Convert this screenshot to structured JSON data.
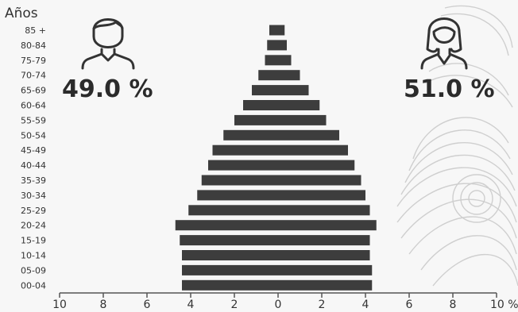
{
  "chart_data": {
    "type": "bar",
    "orientation": "horizontal",
    "layout": "population-pyramid",
    "ylabel": "Años",
    "categories": [
      "85 +",
      "80-84",
      "75-79",
      "70-74",
      "65-69",
      "60-64",
      "55-59",
      "50-54",
      "45-49",
      "40-44",
      "35-39",
      "30-34",
      "25-29",
      "20-24",
      "15-19",
      "10-14",
      "05-09",
      "00-04"
    ],
    "series": [
      {
        "values": [
          0.4,
          0.5,
          0.6,
          0.9,
          1.2,
          1.6,
          2.0,
          2.5,
          3.0,
          3.2,
          3.5,
          3.7,
          4.1,
          4.7,
          4.5,
          4.4,
          4.4,
          4.4
        ]
      },
      {
        "values": [
          0.3,
          0.4,
          0.6,
          1.0,
          1.4,
          1.9,
          2.2,
          2.8,
          3.2,
          3.5,
          3.8,
          4.0,
          4.2,
          4.5,
          4.2,
          4.2,
          4.3,
          4.3
        ]
      }
    ],
    "xlim": [
      -10,
      10
    ],
    "xticks": [
      {
        "value": -10,
        "label": "10"
      },
      {
        "value": -8,
        "label": "8"
      },
      {
        "value": -6,
        "label": "6"
      },
      {
        "value": -4,
        "label": "4"
      },
      {
        "value": -2,
        "label": "2"
      },
      {
        "value": 0,
        "label": "0"
      },
      {
        "value": 2,
        "label": "2"
      },
      {
        "value": 4,
        "label": "4"
      },
      {
        "value": 6,
        "label": "6"
      },
      {
        "value": 8,
        "label": "8"
      },
      {
        "value": 10,
        "label": "10 %"
      }
    ],
    "annotations": {
      "male_percent": "49.0 %",
      "female_percent": "51.0 %"
    },
    "icons": [
      "male-person-icon",
      "female-person-icon"
    ],
    "bar_color": "#3d3d3d"
  }
}
